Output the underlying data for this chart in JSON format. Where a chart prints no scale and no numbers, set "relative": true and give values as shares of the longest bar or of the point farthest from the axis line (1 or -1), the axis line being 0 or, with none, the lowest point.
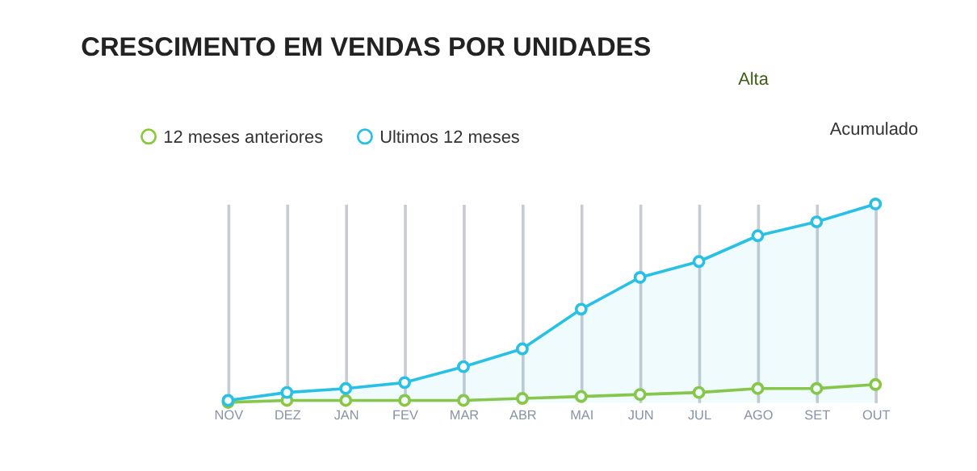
{
  "chart_data": {
    "type": "line",
    "title": "CRESCIMENTO EM VENDAS POR UNIDADES",
    "annotations": [
      "Alta",
      "Acumulado"
    ],
    "categories": [
      "NOV",
      "DEZ",
      "JAN",
      "FEV",
      "MAR",
      "ABR",
      "MAI",
      "JUN",
      "JUL",
      "AGO",
      "SET",
      "OUT"
    ],
    "relative": true,
    "marker": "circle",
    "legend": "top left",
    "grid": "x",
    "series": [
      {
        "name": "12 meses anteriores",
        "color": "#8dc63f",
        "values": [
          0,
          0.01,
          0.01,
          0.01,
          0.01,
          0.02,
          0.03,
          0.04,
          0.05,
          0.07,
          0.07,
          0.09
        ]
      },
      {
        "name": "Ultimos 12 meses",
        "color": "#29c0e6",
        "type": "area",
        "values": [
          0.01,
          0.05,
          0.07,
          0.1,
          0.18,
          0.27,
          0.47,
          0.63,
          0.71,
          0.84,
          0.91,
          1
        ]
      }
    ]
  }
}
